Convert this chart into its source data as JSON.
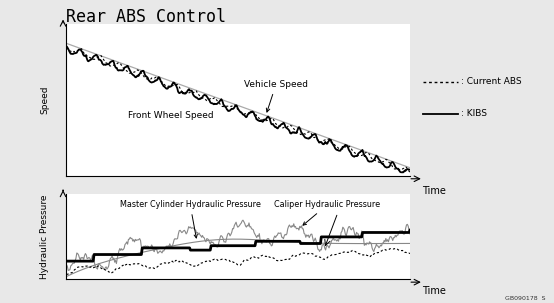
{
  "title": "Rear ABS Control",
  "title_fontsize": 12,
  "background_color": "#e8e8e8",
  "plot_bg_color": "#ffffff",
  "legend_labels": [
    "Current ABS",
    "KIBS"
  ],
  "xlabel_top": "Time",
  "xlabel_bottom": "Time",
  "ylabel_top": "Speed",
  "ylabel_bottom": "Hydraulic Pressure",
  "watermark": "GB090178  S"
}
